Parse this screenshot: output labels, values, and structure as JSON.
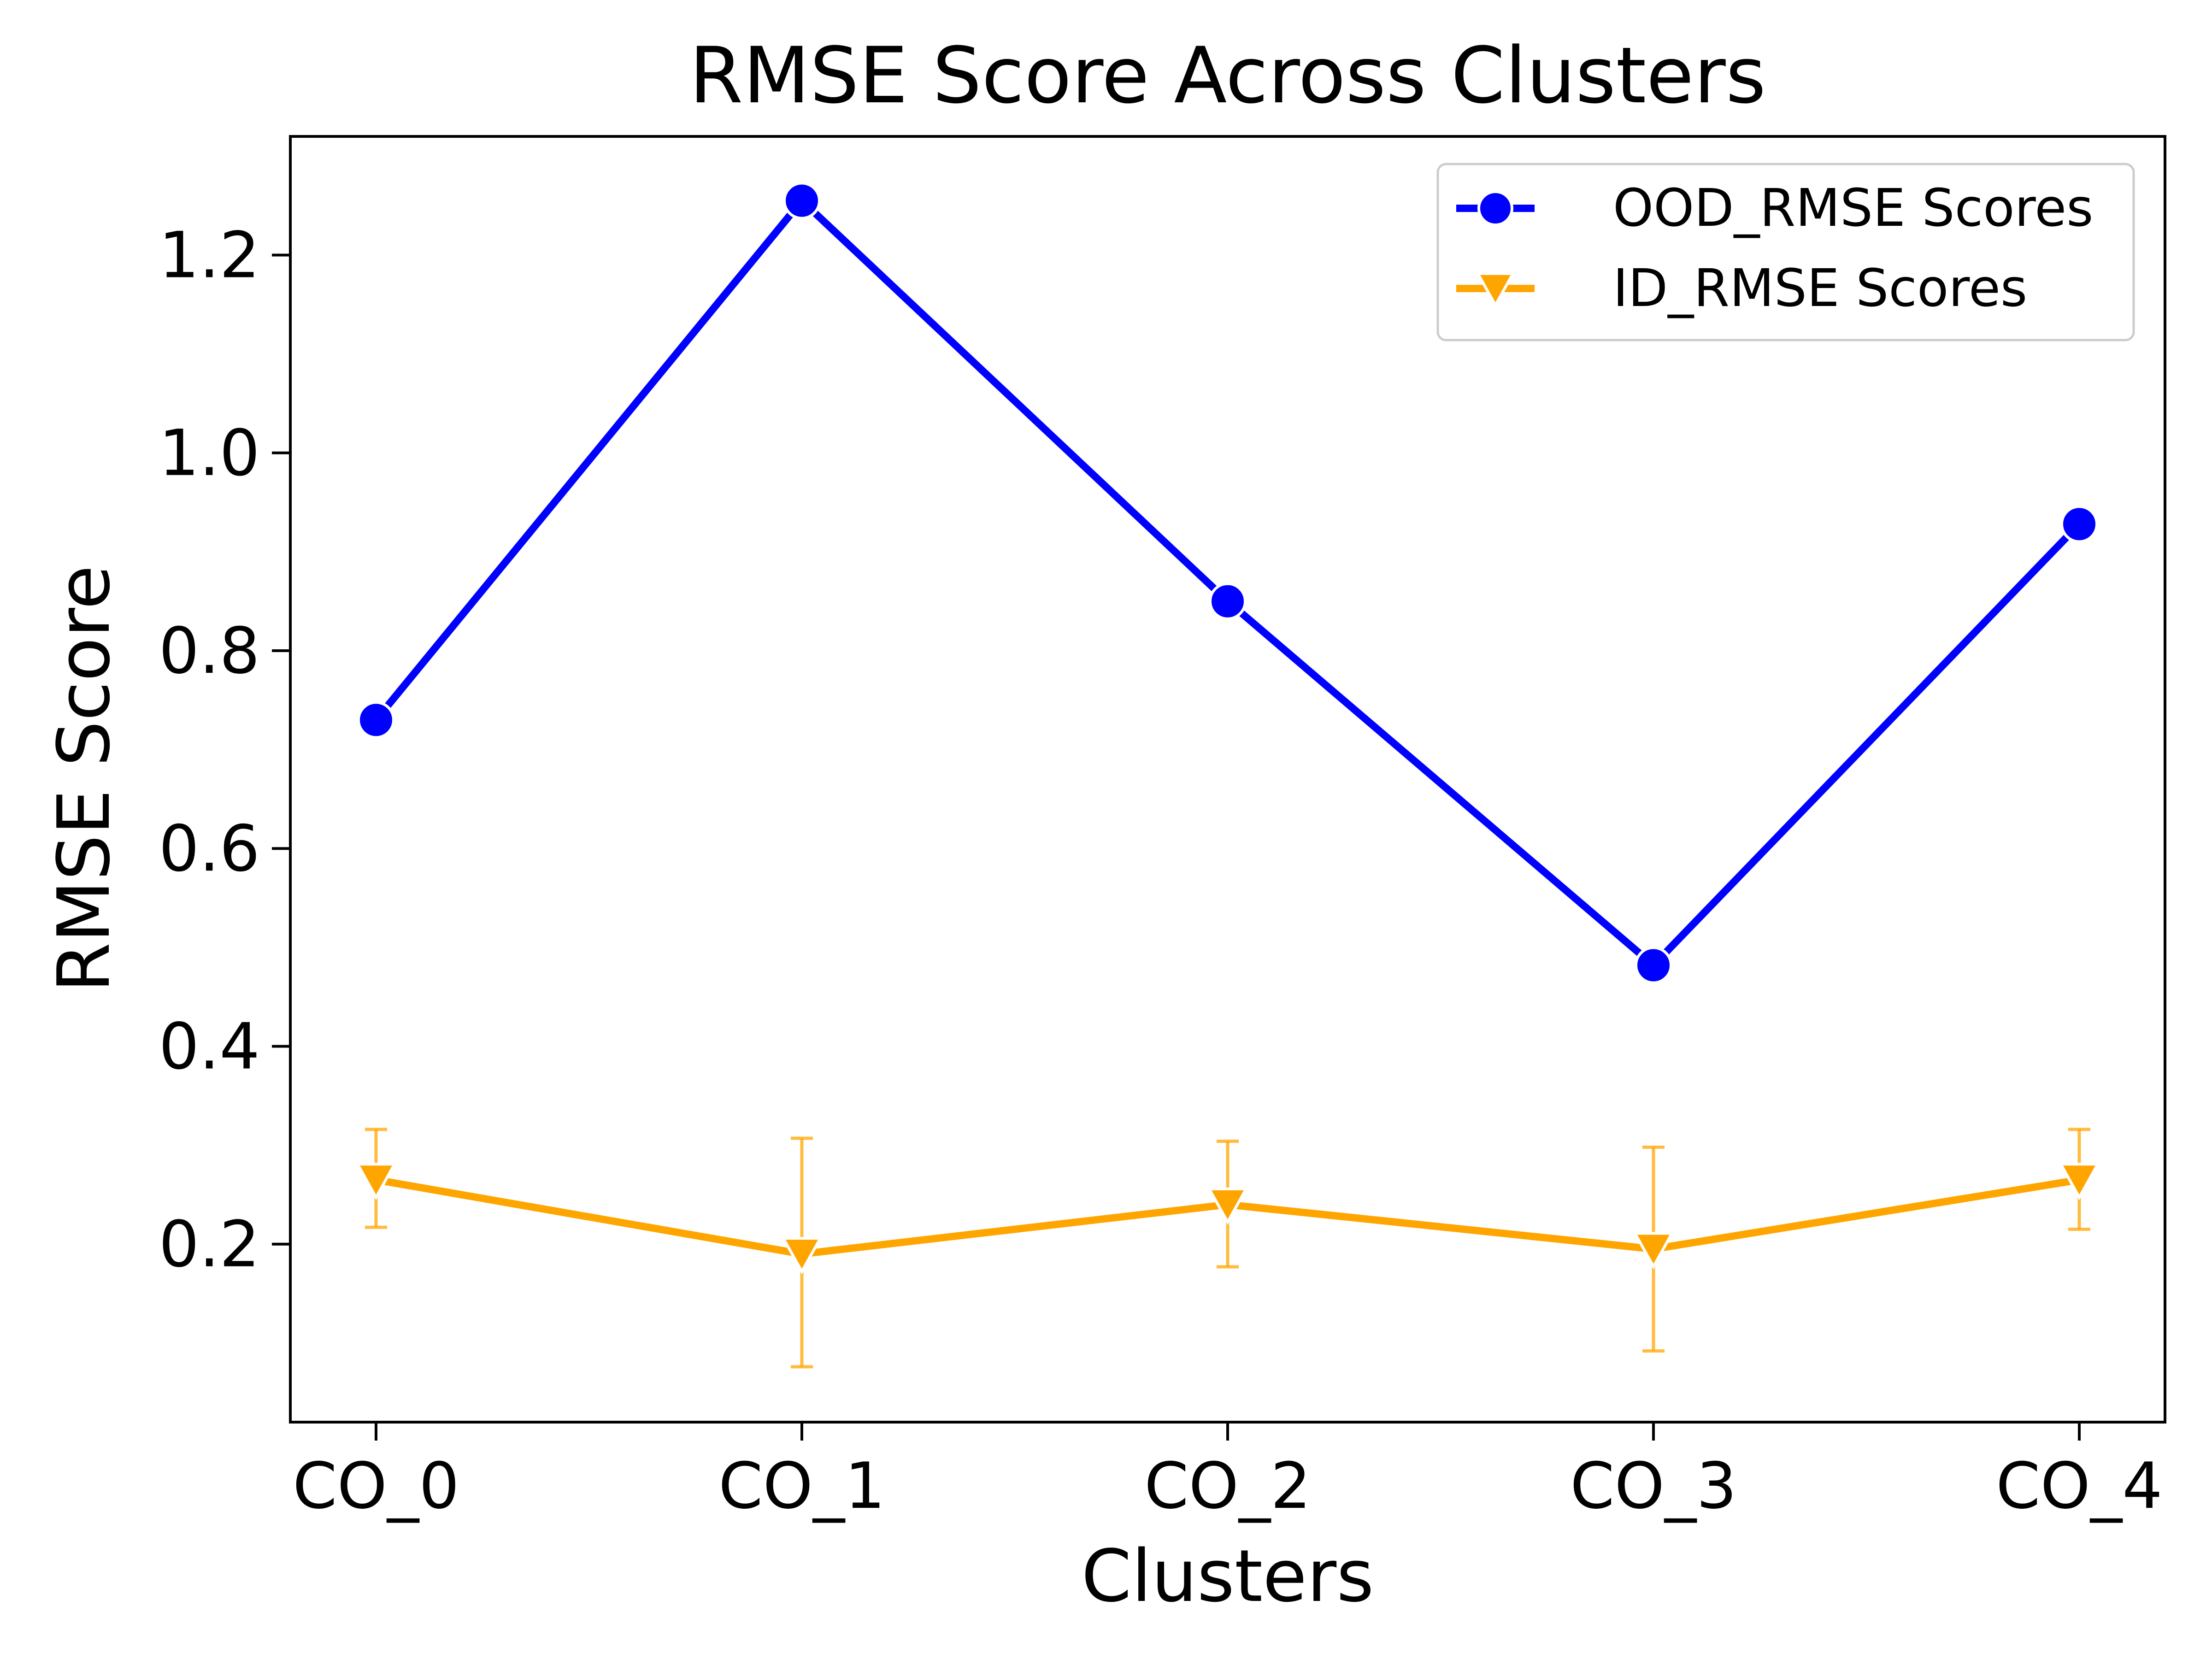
{
  "chart_data": {
    "type": "line",
    "title": "RMSE Score Across Clusters",
    "xlabel": "Clusters",
    "ylabel": "RMSE Score",
    "categories": [
      "CO_0",
      "CO_1",
      "CO_2",
      "CO_3",
      "CO_4"
    ],
    "ylim": [
      0.02,
      1.32
    ],
    "yticks": [
      "0.2",
      "0.4",
      "0.6",
      "0.8",
      "1.0",
      "1.2"
    ],
    "yticks_values": [
      0.2,
      0.4,
      0.6,
      0.8,
      1.0,
      1.2
    ],
    "grid": false,
    "legend_position": "top-right",
    "series": [
      {
        "name": "OOD_RMSE Scores",
        "color": "#0000ff",
        "marker": "circle",
        "values": [
          0.73,
          1.255,
          0.85,
          0.482,
          0.928
        ]
      },
      {
        "name": "ID_RMSE Scores",
        "color": "#ffa500",
        "marker": "triangle-down",
        "values": [
          0.265,
          0.19,
          0.24,
          0.195,
          0.265
        ],
        "error_low": [
          0.217,
          0.076,
          0.177,
          0.092,
          0.215
        ],
        "error_high": [
          0.316,
          0.307,
          0.304,
          0.298,
          0.316
        ]
      }
    ]
  }
}
